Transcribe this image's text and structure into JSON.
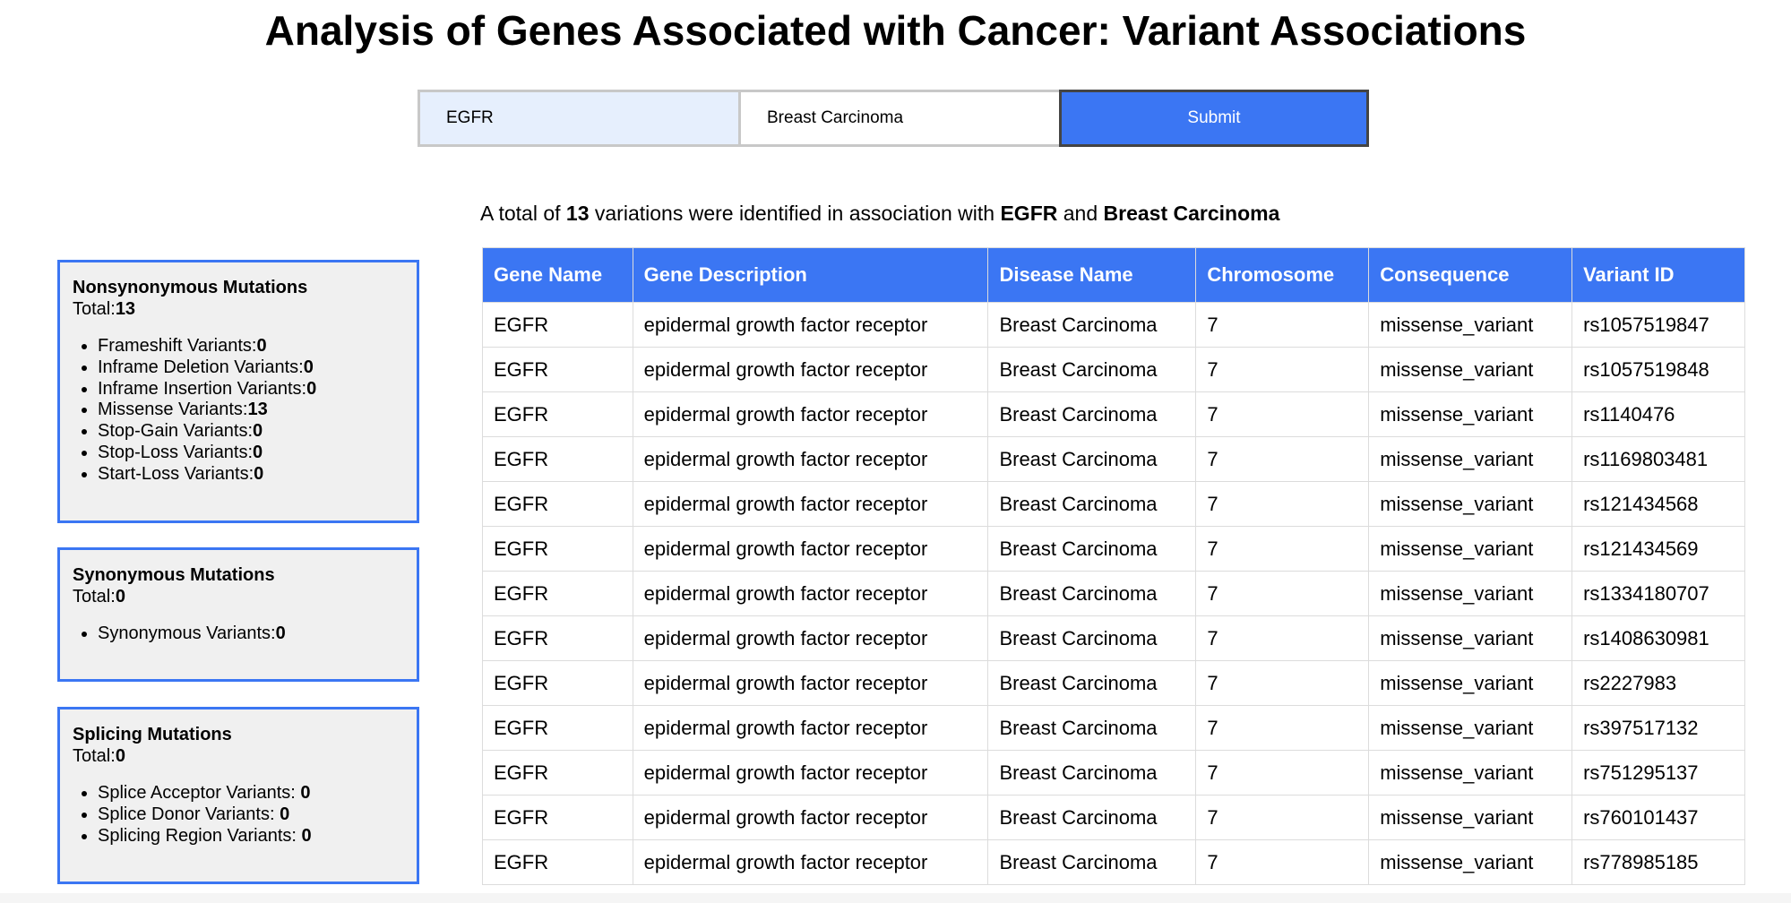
{
  "page_title": "Analysis of Genes Associated with Cancer: Variant Associations",
  "search": {
    "gene_value": "EGFR",
    "disease_value": "Breast Carcinoma",
    "submit_label": "Submit"
  },
  "summary": {
    "prefix": "A total of",
    "count": "13",
    "middle": "variations were identified in association with",
    "gene": "EGFR",
    "and": "and",
    "disease": "Breast Carcinoma"
  },
  "panels": {
    "nonsynonymous": {
      "title": "Nonsynonymous Mutations",
      "total_label": "Total:",
      "total": "13",
      "items": [
        {
          "label": "Frameshift Variants:",
          "value": "0"
        },
        {
          "label": "Inframe Deletion Variants:",
          "value": "0"
        },
        {
          "label": "Inframe Insertion Variants:",
          "value": "0"
        },
        {
          "label": "Missense Variants:",
          "value": "13"
        },
        {
          "label": "Stop-Gain Variants:",
          "value": "0"
        },
        {
          "label": "Stop-Loss Variants:",
          "value": "0"
        },
        {
          "label": "Start-Loss Variants:",
          "value": "0"
        }
      ]
    },
    "synonymous": {
      "title": "Synonymous Mutations",
      "total_label": "Total:",
      "total": "0",
      "items": [
        {
          "label": "Synonymous Variants:",
          "value": "0"
        }
      ]
    },
    "splicing": {
      "title": "Splicing Mutations",
      "total_label": "Total:",
      "total": "0",
      "items": [
        {
          "label": "Splice Acceptor Variants: ",
          "value": "0"
        },
        {
          "label": "Splice Donor Variants: ",
          "value": "0"
        },
        {
          "label": "Splicing Region Variants: ",
          "value": "0"
        }
      ]
    }
  },
  "table": {
    "headers": [
      "Gene Name",
      "Gene Description",
      "Disease Name",
      "Chromosome",
      "Consequence",
      "Variant ID"
    ],
    "rows": [
      [
        "EGFR",
        "epidermal growth factor receptor",
        "Breast Carcinoma",
        "7",
        "missense_variant",
        "rs1057519847"
      ],
      [
        "EGFR",
        "epidermal growth factor receptor",
        "Breast Carcinoma",
        "7",
        "missense_variant",
        "rs1057519848"
      ],
      [
        "EGFR",
        "epidermal growth factor receptor",
        "Breast Carcinoma",
        "7",
        "missense_variant",
        "rs1140476"
      ],
      [
        "EGFR",
        "epidermal growth factor receptor",
        "Breast Carcinoma",
        "7",
        "missense_variant",
        "rs1169803481"
      ],
      [
        "EGFR",
        "epidermal growth factor receptor",
        "Breast Carcinoma",
        "7",
        "missense_variant",
        "rs121434568"
      ],
      [
        "EGFR",
        "epidermal growth factor receptor",
        "Breast Carcinoma",
        "7",
        "missense_variant",
        "rs121434569"
      ],
      [
        "EGFR",
        "epidermal growth factor receptor",
        "Breast Carcinoma",
        "7",
        "missense_variant",
        "rs1334180707"
      ],
      [
        "EGFR",
        "epidermal growth factor receptor",
        "Breast Carcinoma",
        "7",
        "missense_variant",
        "rs1408630981"
      ],
      [
        "EGFR",
        "epidermal growth factor receptor",
        "Breast Carcinoma",
        "7",
        "missense_variant",
        "rs2227983"
      ],
      [
        "EGFR",
        "epidermal growth factor receptor",
        "Breast Carcinoma",
        "7",
        "missense_variant",
        "rs397517132"
      ],
      [
        "EGFR",
        "epidermal growth factor receptor",
        "Breast Carcinoma",
        "7",
        "missense_variant",
        "rs751295137"
      ],
      [
        "EGFR",
        "epidermal growth factor receptor",
        "Breast Carcinoma",
        "7",
        "missense_variant",
        "rs760101437"
      ],
      [
        "EGFR",
        "epidermal growth factor receptor",
        "Breast Carcinoma",
        "7",
        "missense_variant",
        "rs778985185"
      ]
    ]
  },
  "colors": {
    "accent": "#3b76f3",
    "panel_bg": "#f0f0f0",
    "gene_input_bg": "#e6effd"
  }
}
